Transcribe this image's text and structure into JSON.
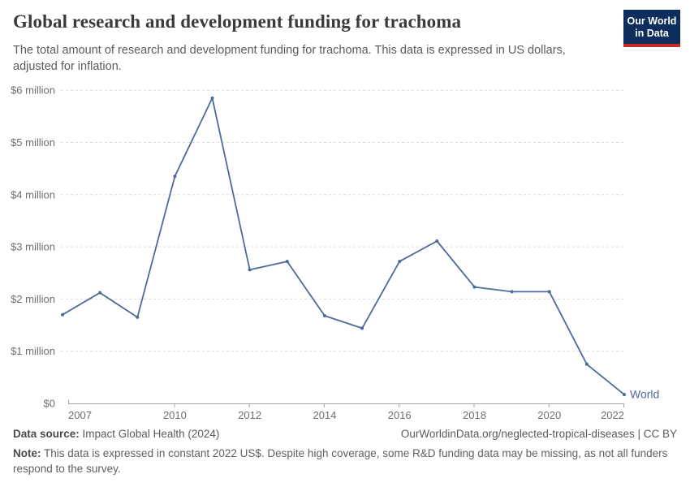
{
  "header": {
    "title": "Global research and development funding for trachoma",
    "subtitle": "The total amount of research and development funding for trachoma. This data is expressed in US dollars, adjusted for inflation.",
    "logo": {
      "line1": "Our World",
      "line2": "in Data",
      "bg_color": "#0d2e5c",
      "bar_color": "#c52e22"
    }
  },
  "chart_data": {
    "type": "line",
    "title": "Global research and development funding for trachoma",
    "unit": "million US$ (constant 2022 US$)",
    "x": [
      2007,
      2008,
      2009,
      2010,
      2011,
      2012,
      2013,
      2014,
      2015,
      2016,
      2017,
      2018,
      2019,
      2020,
      2021,
      2022
    ],
    "series": [
      {
        "name": "World",
        "values": [
          1.7,
          2.12,
          1.65,
          4.35,
          5.85,
          2.56,
          2.72,
          1.68,
          1.44,
          2.72,
          3.11,
          2.23,
          2.14,
          2.14,
          0.75,
          0.17
        ]
      }
    ],
    "x_ticks": [
      2007,
      2010,
      2012,
      2014,
      2016,
      2018,
      2020,
      2022
    ],
    "y_ticks": [
      0,
      1,
      2,
      3,
      4,
      5,
      6
    ],
    "y_tick_labels": [
      "$0",
      "$1 million",
      "$2 million",
      "$3 million",
      "$4 million",
      "$5 million",
      "$6 million"
    ],
    "ylim": [
      0,
      6
    ],
    "grid": "horizontal-dashed",
    "legend_position": "end-of-line",
    "line_color": "#4C6A9C",
    "grid_color": "#dcdcdc",
    "axis_color": "#a3a3a3",
    "tick_text_color": "#6e6e6e"
  },
  "footer": {
    "datasource_label": "Data source:",
    "datasource_value": " Impact Global Health (2024)",
    "link": "OurWorldinData.org/neglected-tropical-diseases | CC BY",
    "note_label": "Note:",
    "note_value": " This data is expressed in constant 2022 US$. Despite high coverage, some R&D funding data may be missing, as not all funders respond to the survey."
  }
}
